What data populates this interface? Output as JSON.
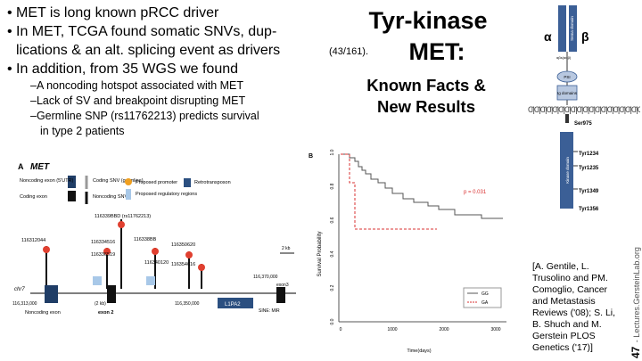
{
  "slide": {
    "bullets": [
      {
        "text": "MET is long known pRCC driver"
      },
      {
        "text": "In MET, TCGA found somatic SNVs, dup-",
        "cont": "lications & an alt. splicing event as drivers"
      },
      {
        "text": "In addition, from 35 WGS we found"
      }
    ],
    "ref": "(43/161).",
    "subbullets": [
      "–A noncoding hotspot associated with MET",
      "–Lack of SV and breakpoint disrupting MET",
      "–Germline SNP (rs11762213) predicts survival",
      "in type 2 patients"
    ],
    "title_line1": "Tyr-kinase",
    "title_line2": "MET:",
    "subtitle_line1": "Known Facts &",
    "subtitle_line2": "New Results",
    "citation": [
      "[A. Gentile, L.",
      "Trusolino and PM.",
      "Comoglio, Cancer",
      "and Metastasis",
      "Reviews ('08); S. Li,",
      "B. Shuch and M.",
      "Gerstein PLOS",
      "Genetics ('17)]"
    ],
    "page_number": "47",
    "footer": "- Lectures.GersteinLab.org"
  },
  "figA": {
    "panel": "A",
    "gene": "MET",
    "legend": [
      "Noncoding exon (5'UTR)",
      "Coding exon",
      "Coding SNV (germline)",
      "Noncoding SNV",
      "Proposed promoter",
      "Proposed regulatory regions",
      "Retrotransposon"
    ],
    "ids": [
      "116312044",
      "116334516",
      "116336519",
      "116340120",
      "116338BB",
      "116350620",
      "116354616"
    ],
    "snp_label": "116339BBD (rs11762213)",
    "chrom": "chr7",
    "ruler_label": "2 kb",
    "coord_left": "116,313,000",
    "coord_mid1": "(2 kb)",
    "coord_mid2": "116,350,000",
    "coord_right": "116,370,000",
    "bottom_left": "Noncoding exon",
    "bottom_mid": "exon 2",
    "l1pa2": "L1PA2",
    "sine": "SINE: MIR",
    "exon3": "exon3"
  },
  "figB": {
    "panel": "B",
    "ylabel": "Survival Probability",
    "xlabel": "Time(days)",
    "yticks": [
      "0.0",
      "0.2",
      "0.4",
      "0.6",
      "0.8",
      "1.0"
    ],
    "xticks": [
      "0",
      "1000",
      "2000",
      "3000"
    ],
    "pvalue": "p = 0.031",
    "legend": [
      "GG",
      "GA"
    ],
    "colors": {
      "gg": "#555555",
      "ga": "#d93030"
    }
  },
  "figMET": {
    "alpha": "α",
    "beta": "β",
    "sema": "Sema domain",
    "small1": "αβs(ααβ)",
    "psi": "PSI",
    "ig": "Ig domains",
    "juxta": "Juxta",
    "ser": "Ser975",
    "kinase": "Kinase domain",
    "tyr1": "Tyr1234",
    "tyr2": "Tyr1235",
    "tyr3": "Tyr1349",
    "tyr4": "Tyr1356"
  }
}
